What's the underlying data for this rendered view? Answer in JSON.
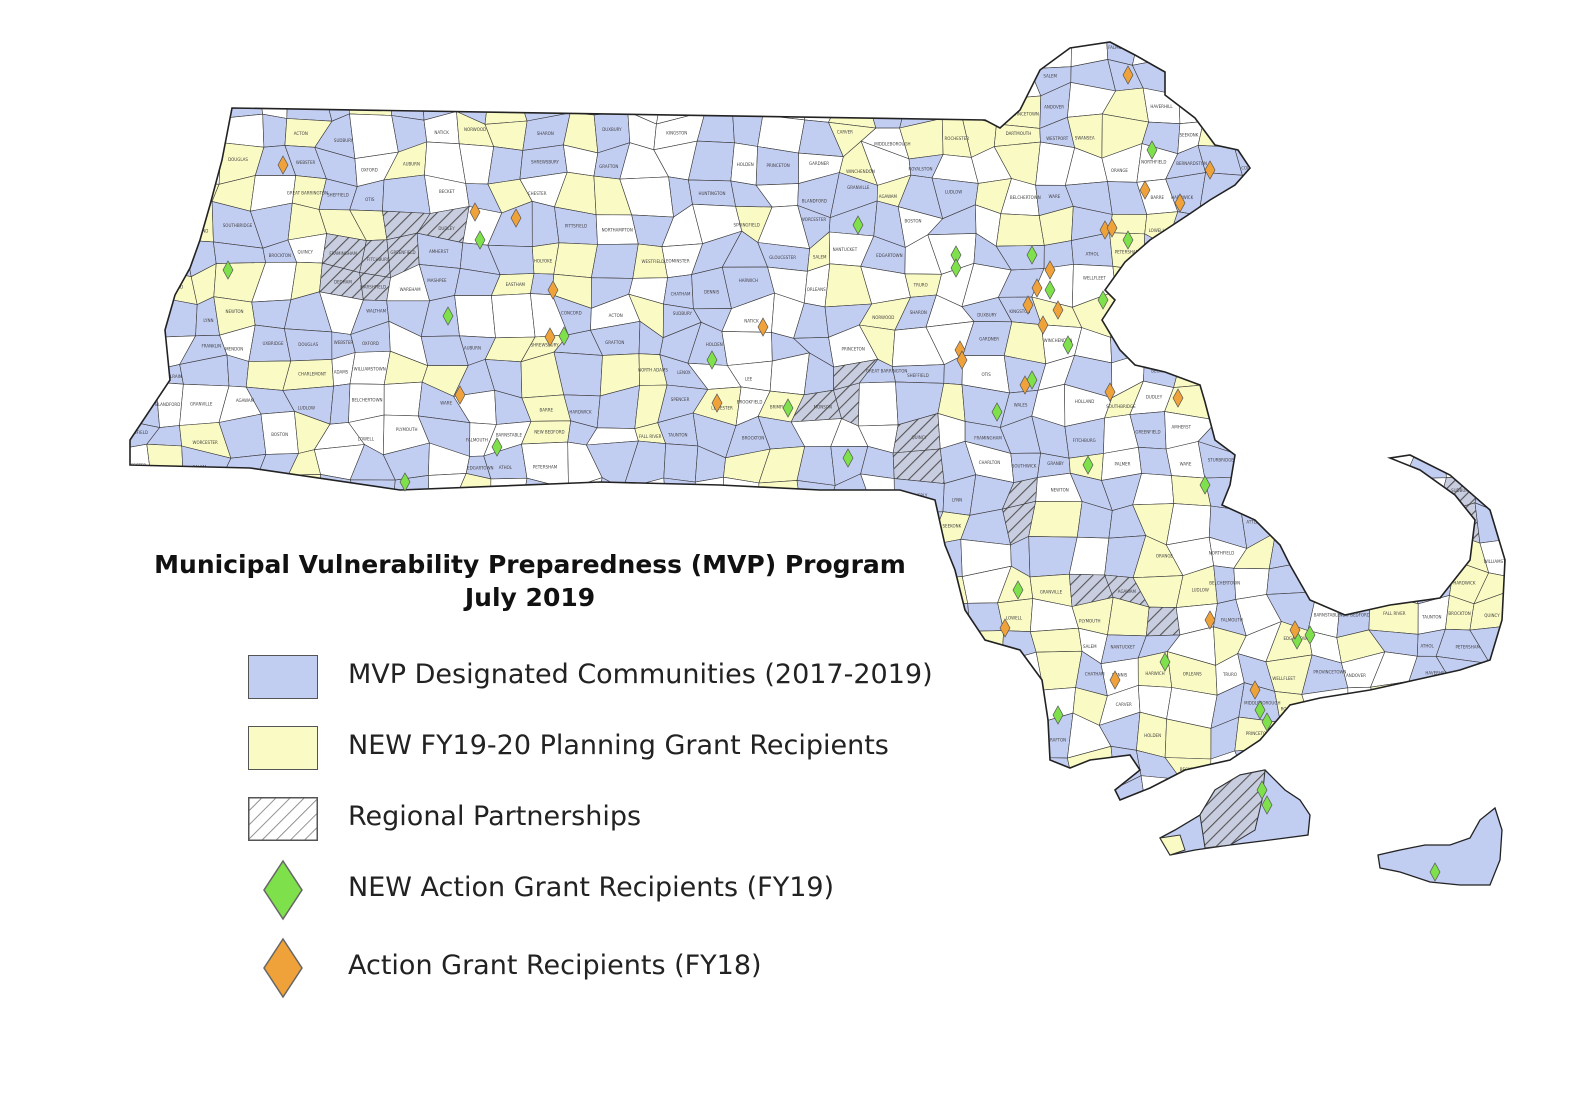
{
  "title": {
    "line1": "Municipal Vulnerability Preparedness (MVP) Program",
    "line2": "July 2019"
  },
  "colors": {
    "designated": "#c2cdf2",
    "planning": "#fafac4",
    "regional_hatch": "#555555",
    "action_fy19": "#7ee04a",
    "action_fy18": "#f0a23a",
    "border": "#3a3a3a",
    "unfilled": "#ffffff"
  },
  "legend": [
    {
      "key": "designated",
      "label": "MVP Designated Communities (2017-2019)",
      "symbol": "square-blue"
    },
    {
      "key": "planning",
      "label": "NEW FY19-20 Planning Grant Recipients",
      "symbol": "square-yellow"
    },
    {
      "key": "regional",
      "label": "Regional Partnerships",
      "symbol": "square-hatched"
    },
    {
      "key": "action_fy19",
      "label": "NEW Action Grant Recipients (FY19)",
      "symbol": "diamond-green"
    },
    {
      "key": "action_fy18",
      "label": "Action Grant Recipients (FY18)",
      "symbol": "diamond-orange"
    }
  ],
  "town_labels": [
    "PITTSFIELD",
    "NORTHAMPTON",
    "SPRINGFIELD",
    "WORCESTER",
    "BOSTON",
    "LOWELL",
    "PLYMOUTH",
    "FALMOUTH",
    "BARNSTABLE",
    "NEW BEDFORD",
    "FALL RIVER",
    "TAUNTON",
    "BROCKTON",
    "QUINCY",
    "FRAMINGHAM",
    "FITCHBURG",
    "GREENFIELD",
    "AMHERST",
    "HOLYOKE",
    "WESTFIELD",
    "LEOMINSTER",
    "GLOUCESTER",
    "SALEM",
    "NANTUCKET",
    "EDGARTOWN",
    "ATHOL",
    "PETERSHAM",
    "CHARLTON",
    "SOUTHWICK",
    "GRANBY",
    "PALMER",
    "WARE",
    "STURBRIDGE",
    "MILFORD",
    "DEDHAM",
    "MARSHFIELD",
    "WAREHAM",
    "MASHPEE",
    "EASTHAM",
    "CHATHAM",
    "DENNIS",
    "HARWICH",
    "ORLEANS",
    "TRURO",
    "WELLFLEET",
    "PROVINCETOWN",
    "ANDOVER",
    "HAVERHILL",
    "IPSWICH",
    "BEVERLY",
    "LYNN",
    "NEWTON",
    "WALTHAM",
    "CONCORD",
    "ACTON",
    "SUDBURY",
    "NATICK",
    "NORWOOD",
    "SHARON",
    "DUXBURY",
    "KINGSTON",
    "CARVER",
    "MIDDLEBOROUGH",
    "ROCHESTER",
    "DARTMOUTH",
    "WESTPORT",
    "SWANSEA",
    "SEEKONK",
    "ATTLEBORO",
    "FOXBOROUGH",
    "FRANKLIN",
    "MENDON",
    "UXBRIDGE",
    "DOUGLAS",
    "WEBSTER",
    "OXFORD",
    "AUBURN",
    "SHREWSBURY",
    "GRAFTON",
    "HOLDEN",
    "PRINCETON",
    "GARDNER",
    "WINCHENDON",
    "ROYALSTON",
    "ORANGE",
    "NORTHFIELD",
    "BERNARDSTON",
    "COLRAIN",
    "CHARLEMONT",
    "ADAMS",
    "WILLIAMSTOWN",
    "NORTH ADAMS",
    "LENOX",
    "LEE",
    "GREAT BARRINGTON",
    "SHEFFIELD",
    "OTIS",
    "BECKET",
    "CHESTER",
    "HUNTINGTON",
    "BLANDFORD",
    "GRANVILLE",
    "AGAWAM",
    "LUDLOW",
    "BELCHERTOWN",
    "WARE",
    "BARRE",
    "HARDWICK",
    "SPENCER",
    "LEICESTER",
    "BROOKFIELD",
    "BRIMFIELD",
    "MONSON",
    "WALES",
    "HOLLAND",
    "SOUTHBRIDGE",
    "DUDLEY"
  ]
}
